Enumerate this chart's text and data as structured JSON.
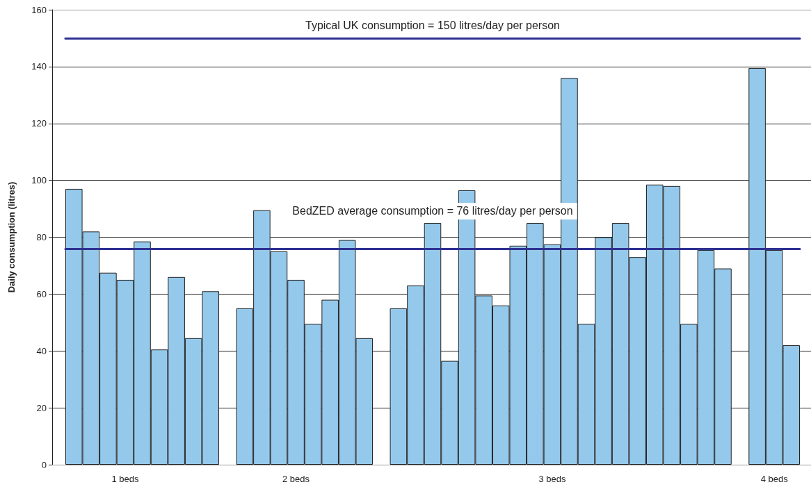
{
  "chart_data": {
    "type": "bar",
    "ylabel": "Daily consumption (litres)",
    "categories": [
      null,
      null,
      null,
      "1 beds",
      null,
      null,
      null,
      null,
      null,
      null,
      null,
      null,
      null,
      "2 beds",
      null,
      null,
      null,
      null,
      null,
      null,
      null,
      null,
      null,
      null,
      null,
      null,
      null,
      null,
      "3 beds",
      null,
      null,
      null,
      null,
      null,
      null,
      null,
      null,
      null,
      null,
      null,
      null,
      "4 beds",
      null
    ],
    "values": [
      97,
      82,
      67.5,
      65,
      78.5,
      40.5,
      66,
      44.5,
      61,
      null,
      55,
      89.5,
      75,
      65,
      49.5,
      58,
      79,
      44.5,
      null,
      55,
      63,
      85,
      36.5,
      96.5,
      59.5,
      56,
      77,
      85,
      77.5,
      136,
      49.5,
      80,
      85,
      73,
      98.5,
      98,
      49.5,
      75.5,
      69,
      null,
      139.5,
      75.5,
      42
    ],
    "color": "#95c9ec",
    "ylim": [
      0,
      160
    ],
    "yticks": [
      0,
      20,
      40,
      60,
      80,
      100,
      120,
      140,
      160
    ],
    "grid": "y",
    "ref_lines": [
      {
        "axis": "y",
        "value": 150,
        "label": "Typical UK consumption = 150 litres/day per person",
        "color": "#2e3192"
      },
      {
        "axis": "y",
        "value": 76,
        "label": "BedZED average consumption = 76 litres/day per person",
        "color": "#2e3192"
      }
    ]
  }
}
